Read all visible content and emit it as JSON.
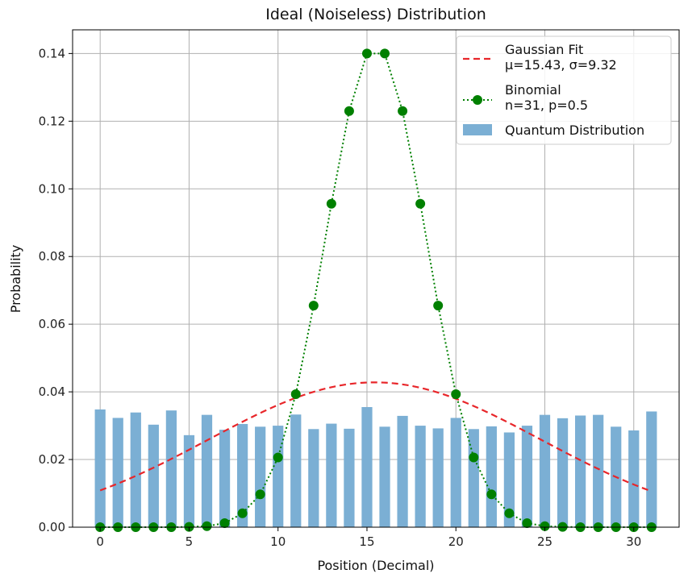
{
  "chart_data": {
    "type": "bar",
    "title": "Ideal (Noiseless) Distribution",
    "xlabel": "Position (Decimal)",
    "ylabel": "Probability",
    "xlim": [
      -1.55,
      32.55
    ],
    "ylim": [
      0,
      0.147
    ],
    "xticks": [
      0,
      5,
      10,
      15,
      20,
      25,
      30
    ],
    "yticks": [
      0.0,
      0.02,
      0.04,
      0.06,
      0.08,
      0.1,
      0.12,
      0.14
    ],
    "grid": true,
    "legend_position": "top-right",
    "x": [
      0,
      1,
      2,
      3,
      4,
      5,
      6,
      7,
      8,
      9,
      10,
      11,
      12,
      13,
      14,
      15,
      16,
      17,
      18,
      19,
      20,
      21,
      22,
      23,
      24,
      25,
      26,
      27,
      28,
      29,
      30,
      31
    ],
    "series": [
      {
        "name": "Quantum Distribution",
        "kind": "bar",
        "color": "#7bafd4",
        "values": [
          0.0348,
          0.0323,
          0.0339,
          0.0303,
          0.0345,
          0.0272,
          0.0332,
          0.0288,
          0.0305,
          0.0297,
          0.03,
          0.0333,
          0.029,
          0.0306,
          0.0291,
          0.0355,
          0.0297,
          0.0329,
          0.03,
          0.0292,
          0.0323,
          0.029,
          0.0298,
          0.028,
          0.03,
          0.0332,
          0.0322,
          0.033,
          0.0332,
          0.0297,
          0.0286,
          0.0342
        ]
      },
      {
        "name": "Binomial\nn=31, p=0.5",
        "kind": "line-markers",
        "color": "#008000",
        "linestyle": "dotted",
        "values": [
          0.0,
          0.0,
          0.0,
          0.0,
          0.0,
          0.0001,
          0.0003,
          0.0012,
          0.0041,
          0.0097,
          0.0206,
          0.0393,
          0.0655,
          0.0956,
          0.123,
          0.14,
          0.14,
          0.123,
          0.0956,
          0.0655,
          0.0393,
          0.0206,
          0.0097,
          0.0041,
          0.0012,
          0.0003,
          0.0001,
          0.0,
          0.0,
          0.0,
          0.0,
          0.0
        ]
      },
      {
        "name": "Gaussian Fit\nμ=15.43, σ=9.32",
        "kind": "line",
        "color": "#e8262a",
        "linestyle": "dashed",
        "mu": 15.43,
        "sigma": 9.32,
        "x_range": [
          0,
          31
        ]
      }
    ]
  }
}
